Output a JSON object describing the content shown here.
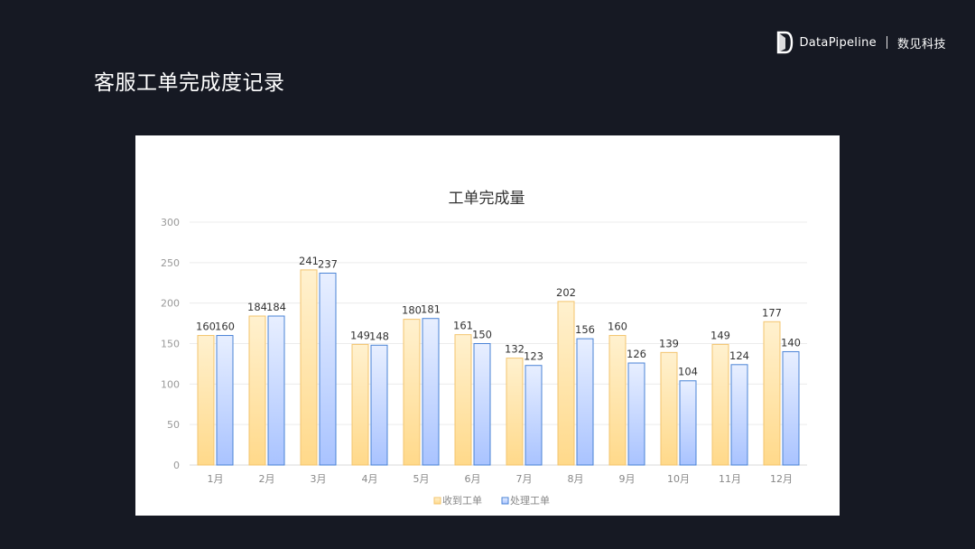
{
  "slide": {
    "title": "客服工单完成度记录"
  },
  "brand": {
    "name": "DataPipeline",
    "cn_name": "数见科技"
  },
  "colors": {
    "background": "#161923",
    "series1_top": "#fff1cf",
    "series1_bottom": "#ffd98a",
    "series1_stroke": "#f3c46e",
    "series2_top": "#e8efff",
    "series2_bottom": "#a9c3ff",
    "series2_stroke": "#4a83d6"
  },
  "chart_data": {
    "type": "bar",
    "title": "工单完成量",
    "categories": [
      "1月",
      "2月",
      "3月",
      "4月",
      "5月",
      "6月",
      "7月",
      "8月",
      "9月",
      "10月",
      "11月",
      "12月"
    ],
    "series": [
      {
        "name": "收到工单",
        "values": [
          160,
          184,
          241,
          149,
          180,
          161,
          132,
          202,
          160,
          139,
          149,
          177
        ]
      },
      {
        "name": "处理工单",
        "values": [
          160,
          184,
          237,
          148,
          181,
          150,
          123,
          156,
          126,
          104,
          124,
          140
        ]
      }
    ],
    "ylim": [
      0,
      300
    ],
    "yticks": [
      0,
      50,
      100,
      150,
      200,
      250,
      300
    ],
    "grid": true,
    "legend": "bottom",
    "xlabel": "",
    "ylabel": ""
  }
}
